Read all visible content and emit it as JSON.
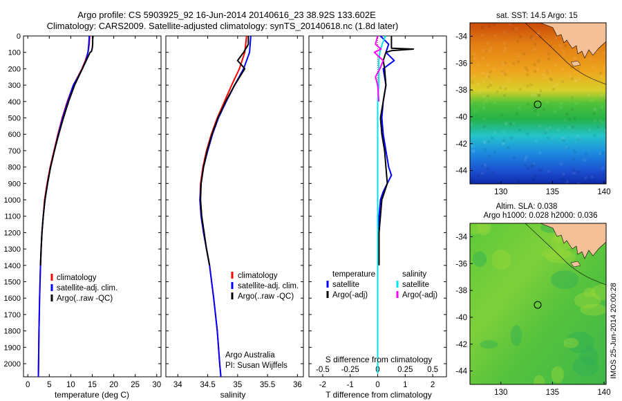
{
  "header": {
    "line1": "Argo profile: CS 5903925_92 16-Jun-2014 20140616_23 38.92S 133.602E",
    "line2": "Climatology: CARS2009. Satellite-adjusted climatology: synTS_20140618.nc (1.8d later)"
  },
  "credit": {
    "line1": "Argo Australia",
    "line2": "PI: Susan Wijffels"
  },
  "stamp": "IMOS 25-Jun-2014 20:00:28",
  "colors": {
    "climatology": "#ff0000",
    "satellite": "#0000ff",
    "argo": "#000000",
    "salinity_satellite": "#00e5ee",
    "salinity_argo": "#ff00ff",
    "land": "#f5c098"
  },
  "chart_data": [
    {
      "type": "line",
      "xlabel": "temperature (deg C)",
      "ylabel": "",
      "xlim": [
        -1,
        31
      ],
      "ylim": [
        2080,
        0
      ],
      "xticks": [
        0,
        5,
        10,
        15,
        20,
        25,
        30
      ],
      "yticks": [
        0,
        100,
        200,
        300,
        400,
        500,
        600,
        700,
        800,
        900,
        1000,
        1100,
        1200,
        1300,
        1400,
        1500,
        1600,
        1700,
        1800,
        1900,
        2000
      ],
      "legend": [
        "climatology",
        "satellite-adj. clim.",
        "Argo(..raw -QC)"
      ],
      "series": [
        {
          "name": "climatology",
          "depth": [
            0,
            50,
            100,
            150,
            200,
            250,
            300,
            400,
            500,
            600,
            700,
            800,
            900,
            1000,
            1100,
            1200,
            1300,
            1400,
            1600,
            1800,
            2000,
            2080
          ],
          "values": [
            14.4,
            14.3,
            14.0,
            13.4,
            12.6,
            11.6,
            10.6,
            9.2,
            8.0,
            7.0,
            6.1,
            5.2,
            4.5,
            3.9,
            3.6,
            3.3,
            3.1,
            2.95,
            2.75,
            2.6,
            2.5,
            2.45
          ]
        },
        {
          "name": "satellite-adj. clim.",
          "depth": [
            0,
            50,
            100,
            150,
            200,
            250,
            300,
            400,
            500,
            600,
            700,
            800,
            900,
            1000,
            1100,
            1200,
            1300,
            1400,
            1600,
            1800,
            2000,
            2080
          ],
          "values": [
            14.3,
            14.2,
            14.0,
            13.5,
            12.7,
            11.7,
            10.6,
            9.3,
            8.1,
            7.1,
            6.2,
            5.3,
            4.6,
            4.0,
            3.6,
            3.3,
            3.1,
            2.95,
            2.75,
            2.6,
            2.5,
            2.45
          ]
        },
        {
          "name": "Argo(..raw -QC)",
          "depth": [
            0,
            25,
            50,
            75,
            95,
            100,
            150,
            200,
            250,
            300,
            400,
            500,
            600,
            700,
            800,
            900,
            1000,
            1100,
            1200,
            1300,
            1400
          ],
          "values": [
            15.2,
            15.1,
            15.1,
            15.0,
            14.8,
            14.5,
            13.6,
            12.7,
            11.8,
            10.9,
            9.5,
            8.3,
            7.2,
            6.2,
            5.3,
            4.6,
            4.0,
            3.6,
            3.3,
            3.1,
            2.95
          ]
        }
      ]
    },
    {
      "type": "line",
      "xlabel": "salinity",
      "ylabel": "",
      "xlim": [
        33.8,
        36.1
      ],
      "ylim": [
        2080,
        0
      ],
      "xticks": [
        34,
        34.5,
        35,
        35.5,
        36
      ],
      "legend": [
        "climatology",
        "satellite-adj. clim.",
        "Argo(..raw -QC)"
      ],
      "series": [
        {
          "name": "climatology",
          "depth": [
            0,
            100,
            200,
            300,
            400,
            500,
            600,
            700,
            800,
            900,
            1000,
            1100,
            1200,
            1300,
            1400,
            1600,
            1800,
            2000,
            2080
          ],
          "values": [
            35.15,
            35.12,
            35.03,
            34.9,
            34.78,
            34.66,
            34.56,
            34.48,
            34.42,
            34.38,
            34.37,
            34.39,
            34.43,
            34.48,
            34.53,
            34.6,
            34.66,
            34.7,
            34.72
          ]
        },
        {
          "name": "satellite-adj. clim.",
          "depth": [
            0,
            100,
            200,
            300,
            400,
            500,
            600,
            700,
            800,
            900,
            1000,
            1100,
            1200,
            1300,
            1400,
            1600,
            1800,
            2000,
            2080
          ],
          "values": [
            35.22,
            35.2,
            35.1,
            34.95,
            34.81,
            34.68,
            34.58,
            34.5,
            34.43,
            34.39,
            34.37,
            34.39,
            34.43,
            34.48,
            34.53,
            34.6,
            34.66,
            34.7,
            34.72
          ]
        },
        {
          "name": "Argo(..raw -QC)",
          "depth": [
            0,
            50,
            100,
            150,
            200,
            300,
            400,
            500,
            600,
            700,
            800,
            900,
            1000,
            1100,
            1200,
            1300,
            1400
          ],
          "values": [
            35.18,
            35.18,
            35.1,
            35.0,
            35.12,
            34.95,
            34.8,
            34.67,
            34.57,
            34.49,
            34.43,
            34.39,
            34.38,
            34.4,
            34.44,
            34.48,
            34.53
          ]
        }
      ]
    },
    {
      "type": "line",
      "xlabel": "T difference from climatology",
      "xlabel2": "S difference from climatology",
      "ylabel": "",
      "xlim": [
        -2.5,
        2.5
      ],
      "ylim": [
        2080,
        0
      ],
      "xticks": [
        -2,
        -1,
        0,
        1,
        2
      ],
      "xticks_s": [
        -0.5,
        -0.25,
        0,
        0.25,
        0.5
      ],
      "legend_temp_title": "temperature",
      "legend_sal_title": "salinity",
      "legend": [
        "satellite",
        "Argo(-adj)",
        "satellite",
        "Argo(-adj)"
      ],
      "series": [
        {
          "name": "satellite",
          "group": "temperature",
          "depth": [
            0,
            50,
            100,
            150,
            200,
            300,
            400,
            500,
            600,
            700,
            800,
            850,
            900,
            950,
            1000,
            1100,
            1200,
            1400,
            1600,
            1800,
            2000,
            2060
          ],
          "values": [
            0.1,
            0.4,
            0.3,
            0.6,
            0.2,
            0.3,
            0.2,
            0.15,
            0.2,
            0.3,
            0.4,
            0.5,
            0.35,
            0.2,
            0.1,
            0.05,
            0.0,
            0.0,
            0.0,
            0.0,
            0.0,
            0.0
          ]
        },
        {
          "name": "Argo(-adj)",
          "group": "temperature",
          "depth": [
            0,
            50,
            75,
            80,
            90,
            100,
            150,
            200,
            300,
            400,
            500,
            600,
            700,
            800,
            900,
            1000,
            1100,
            1200,
            1400
          ],
          "values": [
            0.5,
            0.5,
            0.5,
            1.3,
            0.5,
            0.3,
            0.2,
            0.25,
            0.3,
            0.2,
            0.1,
            0.15,
            0.25,
            0.3,
            0.35,
            0.15,
            0.1,
            0.05,
            0.05
          ]
        },
        {
          "name": "satellite",
          "group": "salinity",
          "depth": [
            0,
            50,
            100,
            150,
            200,
            300,
            400,
            500,
            700,
            900,
            1000,
            1200,
            1400,
            1600,
            1800,
            2000,
            2060
          ],
          "values": [
            0.07,
            0.04,
            0.02,
            0.01,
            0.01,
            0.01,
            0.0,
            0.0,
            0.0,
            0.0,
            0.0,
            0.0,
            0.0,
            0.0,
            0.0,
            0.0,
            0.0
          ]
        },
        {
          "name": "Argo(-adj)",
          "group": "salinity",
          "depth": [
            0,
            50,
            80,
            100,
            150,
            200,
            250,
            300,
            400
          ],
          "values": [
            0.0,
            -0.02,
            0.03,
            -0.03,
            0.05,
            0.02,
            -0.02,
            0.0,
            0.01
          ]
        }
      ]
    },
    {
      "type": "heatmap",
      "title": "sat. SST: 14.5 Argo: 15",
      "xticks": [
        130,
        135,
        140
      ],
      "yticks": [
        -34,
        -36,
        -38,
        -40,
        -42,
        -44
      ],
      "xlim": [
        127,
        140.2
      ],
      "ylim": [
        -45,
        -33
      ],
      "marker": {
        "lon": 133.6,
        "lat": -38.92
      }
    },
    {
      "type": "heatmap",
      "title_line1": "Altim. SLA: 0.038",
      "title_line2": "Argo h1000: 0.028 h2000: 0.036",
      "xticks": [
        130,
        135,
        140
      ],
      "yticks": [
        -34,
        -36,
        -38,
        -40,
        -42,
        -44
      ],
      "xlim": [
        127,
        140.2
      ],
      "ylim": [
        -45,
        -33
      ],
      "marker": {
        "lon": 133.6,
        "lat": -38.92
      }
    }
  ]
}
